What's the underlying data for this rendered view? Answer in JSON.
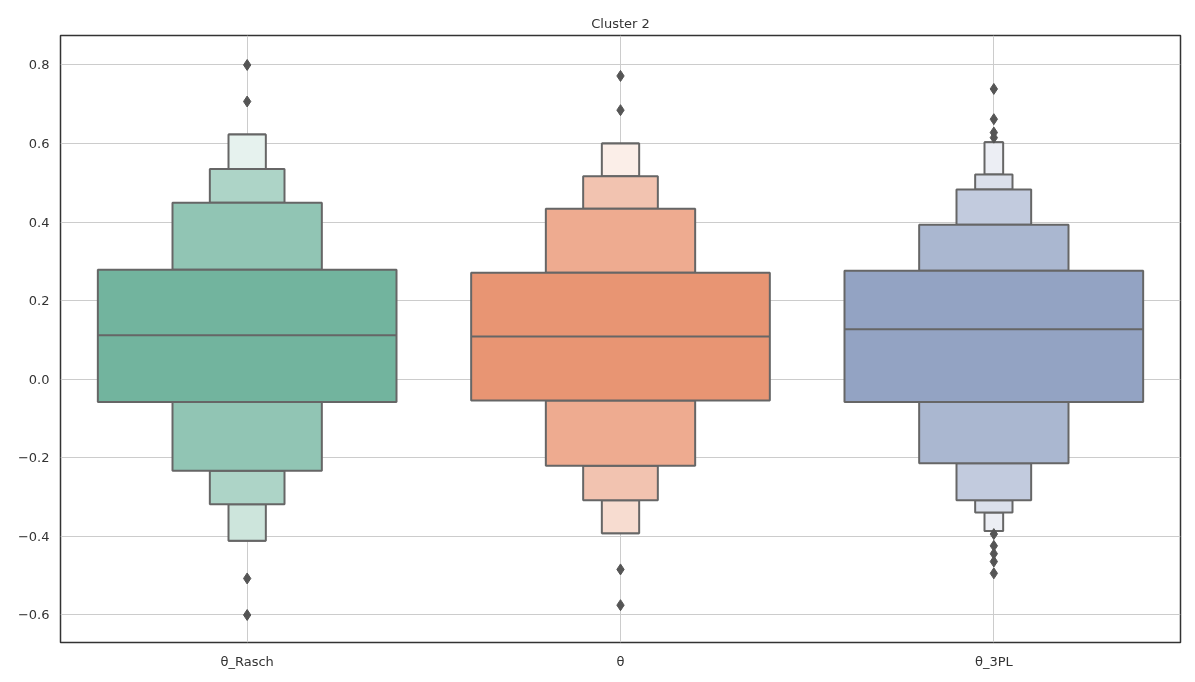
{
  "chart_data": {
    "type": "box",
    "title": "Cluster 2",
    "categories": [
      "θ_Rasch",
      "θ",
      "θ_3PL"
    ],
    "colors": [
      "#72b49e",
      "#e89573",
      "#93a3c3"
    ],
    "boxes": [
      {
        "low": -0.411,
        "q1": -0.058,
        "median": 0.112,
        "q3": 0.279,
        "high": 0.623,
        "outliers": [
          0.8,
          0.707,
          -0.507,
          -0.6
        ]
      },
      {
        "low": -0.392,
        "q1": -0.054,
        "median": 0.109,
        "q3": 0.271,
        "high": 0.6,
        "outliers": [
          0.772,
          0.685,
          -0.484,
          -0.575
        ]
      },
      {
        "low": -0.386,
        "q1": -0.058,
        "median": 0.127,
        "q3": 0.276,
        "high": 0.603,
        "outliers": [
          0.739,
          0.662,
          0.628,
          0.615,
          -0.394,
          -0.424,
          -0.444,
          -0.464,
          -0.494
        ]
      }
    ],
    "series": [
      {
        "type": "bar",
        "base": [
          0.279,
          0.271,
          0.276
        ],
        "values": [
          0.17,
          0.163,
          0.117
        ],
        "colors": [
          "#91c5b4",
          "#eeab90",
          "#aab7d0"
        ]
      },
      {
        "type": "bar",
        "base": [
          -0.233,
          -0.22,
          -0.214
        ],
        "values": [
          0.175,
          0.166,
          0.156
        ],
        "colors": [
          "#91c5b4",
          "#eeab90",
          "#aab7d0"
        ]
      },
      {
        "type": "bar",
        "base": [
          0.449,
          0.434,
          0.393
        ],
        "values": [
          0.086,
          0.083,
          0.09
        ],
        "colors": [
          "#add4c7",
          "#f2c3b0",
          "#c2cbde"
        ]
      },
      {
        "type": "bar",
        "base": [
          -0.318,
          -0.308,
          -0.308
        ],
        "values": [
          0.085,
          0.088,
          0.094
        ],
        "colors": [
          "#add4c7",
          "#f2c3b0",
          "#c2cbde"
        ]
      },
      {
        "type": "bar",
        "base": [
          0.535,
          0.517,
          0.483
        ],
        "values": [
          0.088,
          0.083,
          0.038
        ],
        "colors": [
          "#e6f2ee",
          "#fbeee8",
          "#dbe0eb"
        ]
      },
      {
        "type": "bar",
        "base": [
          -0.411,
          -0.392,
          -0.339
        ],
        "values": [
          0.093,
          0.084,
          0.031
        ],
        "colors": [
          "#cde5dc",
          "#f7dcd0",
          "#dbe0eb"
        ]
      },
      {
        "type": "bar",
        "base": [
          null,
          null,
          0.521
        ],
        "values": [
          null,
          null,
          0.082
        ],
        "colors": [
          null,
          null,
          "#eceef4"
        ]
      },
      {
        "type": "bar",
        "base": [
          null,
          null,
          -0.386
        ],
        "values": [
          null,
          null,
          0.047
        ],
        "colors": [
          null,
          null,
          "#eceef4"
        ]
      }
    ],
    "ylim": [
      -0.67,
      0.875
    ],
    "yticks": [
      {
        "value": -0.6,
        "label": "−0.6"
      },
      {
        "value": -0.4,
        "label": "−0.4"
      },
      {
        "value": -0.2,
        "label": "−0.2"
      },
      {
        "value": 0,
        "label": "0.0"
      },
      {
        "value": 0.2,
        "label": "0.2"
      },
      {
        "value": 0.4,
        "label": "0.4"
      },
      {
        "value": 0.6,
        "label": "0.6"
      },
      {
        "value": 0.8,
        "label": "0.8"
      }
    ],
    "grid": true,
    "marker": "diamond"
  }
}
